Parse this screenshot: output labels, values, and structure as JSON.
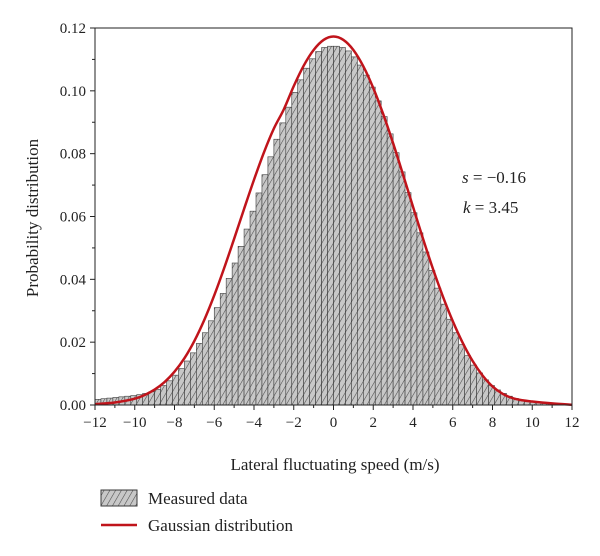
{
  "chart_data": {
    "type": "bar",
    "xlabel": "Lateral fluctuating speed (m/s)",
    "ylabel": "Probability distribution",
    "xlim": [
      -12,
      12
    ],
    "ylim": [
      0,
      0.12
    ],
    "xticks": [
      -12,
      -10,
      -8,
      -6,
      -4,
      -2,
      0,
      2,
      4,
      6,
      8,
      10,
      12
    ],
    "xtick_labels": [
      "−12",
      "−10",
      "−8",
      "−6",
      "−4",
      "−2",
      "0",
      "2",
      "4",
      "6",
      "8",
      "10",
      "12"
    ],
    "yticks": [
      0,
      0.02,
      0.04,
      0.06,
      0.08,
      0.1,
      0.12
    ],
    "ytick_labels": [
      "0.00",
      "0.02",
      "0.04",
      "0.06",
      "0.08",
      "0.10",
      "0.12"
    ],
    "grid": false,
    "legend_position": "bottom-left",
    "annotations": {
      "s_symbol": "s",
      "s_value": " = −0.16",
      "k_symbol": "k",
      "k_value": " = 3.45"
    },
    "series": [
      {
        "name": "Measured data",
        "kind": "histogram",
        "bin_width": 0.3,
        "x": [
          -11.85,
          -11.55,
          -11.25,
          -10.95,
          -10.65,
          -10.35,
          -10.05,
          -9.75,
          -9.45,
          -9.15,
          -8.85,
          -8.55,
          -8.25,
          -7.95,
          -7.65,
          -7.35,
          -7.05,
          -6.75,
          -6.45,
          -6.15,
          -5.85,
          -5.55,
          -5.25,
          -4.95,
          -4.65,
          -4.35,
          -4.05,
          -3.75,
          -3.45,
          -3.15,
          -2.85,
          -2.55,
          -2.25,
          -1.95,
          -1.65,
          -1.35,
          -1.05,
          -0.75,
          -0.45,
          -0.15,
          0.15,
          0.45,
          0.75,
          1.05,
          1.35,
          1.65,
          1.95,
          2.25,
          2.55,
          2.85,
          3.15,
          3.45,
          3.75,
          4.05,
          4.35,
          4.65,
          4.95,
          5.25,
          5.55,
          5.85,
          6.15,
          6.45,
          6.75,
          7.05,
          7.35,
          7.65,
          7.95,
          8.25,
          8.55,
          8.85,
          9.15,
          9.45,
          9.75,
          10.05,
          10.35,
          10.65,
          10.95,
          11.25,
          11.55,
          11.85
        ],
        "values": [
          0.0018,
          0.002,
          0.0022,
          0.0024,
          0.0026,
          0.0028,
          0.003,
          0.0033,
          0.0037,
          0.0042,
          0.005,
          0.0062,
          0.0077,
          0.0095,
          0.0116,
          0.014,
          0.0166,
          0.0196,
          0.023,
          0.0268,
          0.031,
          0.0355,
          0.0403,
          0.0452,
          0.0505,
          0.056,
          0.0617,
          0.0675,
          0.0733,
          0.079,
          0.0846,
          0.0898,
          0.0948,
          0.0995,
          0.1035,
          0.1072,
          0.1102,
          0.1125,
          0.1138,
          0.1142,
          0.1142,
          0.1138,
          0.1127,
          0.1108,
          0.1082,
          0.105,
          0.1012,
          0.0968,
          0.0918,
          0.0863,
          0.0803,
          0.0742,
          0.0676,
          0.0612,
          0.0548,
          0.0487,
          0.0428,
          0.0372,
          0.0321,
          0.0273,
          0.023,
          0.0192,
          0.0157,
          0.0127,
          0.0102,
          0.008,
          0.0062,
          0.0048,
          0.0037,
          0.0028,
          0.0021,
          0.0016,
          0.0012,
          0.0009,
          0.0007,
          0.0005,
          0.0004,
          0.0003,
          0.0002,
          0.0001
        ],
        "fill": "#c8c8c8",
        "stroke": "#3a3a3a"
      },
      {
        "name": "Gaussian distribution",
        "kind": "line",
        "x": [
          -12,
          -11,
          -10,
          -9.5,
          -9,
          -8.5,
          -8,
          -7.5,
          -7,
          -6.5,
          -6,
          -5.5,
          -5,
          -4.5,
          -4,
          -3.5,
          -3,
          -2.5,
          -2,
          -1.5,
          -1,
          -0.5,
          0,
          0.5,
          1,
          1.5,
          2,
          2.5,
          3,
          3.5,
          4,
          4.5,
          5,
          5.5,
          6,
          6.5,
          7,
          7.5,
          8,
          8.5,
          9,
          9.5,
          10,
          11,
          12
        ],
        "values": [
          0.0003,
          0.0008,
          0.002,
          0.0032,
          0.0049,
          0.0073,
          0.0106,
          0.0149,
          0.0204,
          0.0271,
          0.0349,
          0.0436,
          0.0529,
          0.0624,
          0.0717,
          0.0804,
          0.088,
          0.0941,
          0.1015,
          0.108,
          0.113,
          0.1162,
          0.1173,
          0.1162,
          0.113,
          0.1078,
          0.1009,
          0.0926,
          0.0833,
          0.0733,
          0.0631,
          0.053,
          0.0434,
          0.0346,
          0.0267,
          0.0198,
          0.014,
          0.0094,
          0.0059,
          0.0036,
          0.0022,
          0.0015,
          0.0011,
          0.0005,
          0.0001
        ],
        "color": "#c0141b"
      }
    ]
  }
}
